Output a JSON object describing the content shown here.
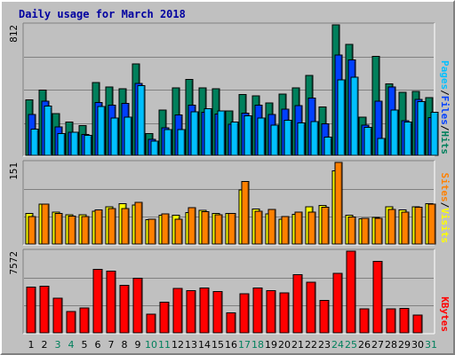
{
  "title": "Daily usage for March 2018",
  "colors": {
    "hits": "#00805c",
    "files": "#0040ff",
    "pages": "#00c0ff",
    "visits": "#ffff00",
    "sites": "#ff8000",
    "kbytes": "#ff0000",
    "weekday_label": "#000000",
    "weekend_label": "#00805c",
    "title": "#0000a0"
  },
  "chart_data": [
    {
      "type": "bar",
      "panel": "requests",
      "categories": [
        "1",
        "2",
        "3",
        "4",
        "5",
        "6",
        "7",
        "8",
        "9",
        "10",
        "11",
        "12",
        "13",
        "14",
        "15",
        "16",
        "17",
        "18",
        "19",
        "20",
        "21",
        "22",
        "23",
        "24",
        "25",
        "26",
        "27",
        "28",
        "29",
        "30",
        "31"
      ],
      "ymax": 812,
      "ymax_label": "812",
      "series": [
        {
          "name": "Hits",
          "values": [
            345,
            406,
            260,
            208,
            186,
            453,
            424,
            414,
            569,
            134,
            282,
            420,
            472,
            420,
            414,
            276,
            378,
            370,
            325,
            381,
            419,
            497,
            300,
            812,
            691,
            238,
            616,
            446,
            391,
            398,
            360
          ]
        },
        {
          "name": "Files",
          "values": [
            253,
            336,
            176,
            144,
            129,
            328,
            312,
            322,
            447,
            99,
            170,
            250,
            311,
            267,
            257,
            194,
            262,
            312,
            255,
            287,
            308,
            356,
            196,
            625,
            594,
            187,
            337,
            426,
            216,
            347,
            234
          ]
        },
        {
          "name": "Pages",
          "values": [
            163,
            307,
            136,
            145,
            123,
            304,
            232,
            238,
            433,
            89,
            159,
            160,
            270,
            290,
            275,
            207,
            247,
            232,
            187,
            218,
            201,
            211,
            112,
            470,
            485,
            175,
            105,
            281,
            206,
            334,
            267
          ]
        }
      ],
      "right_labels": [
        {
          "text": "Pages",
          "color": "#00c0ff"
        },
        {
          "text": "/",
          "color": "#000000"
        },
        {
          "text": "Files",
          "color": "#0040ff"
        },
        {
          "text": "/",
          "color": "#000000"
        },
        {
          "text": "Hits",
          "color": "#00805c"
        }
      ]
    },
    {
      "type": "bar",
      "panel": "visitors",
      "categories": [
        "1",
        "2",
        "3",
        "4",
        "5",
        "6",
        "7",
        "8",
        "9",
        "10",
        "11",
        "12",
        "13",
        "14",
        "15",
        "16",
        "17",
        "18",
        "19",
        "20",
        "21",
        "22",
        "23",
        "24",
        "25",
        "26",
        "27",
        "28",
        "29",
        "30",
        "31"
      ],
      "ymax": 151,
      "ymax_label": "151",
      "series": [
        {
          "name": "Visits",
          "values": [
            57,
            74,
            59,
            54,
            54,
            61,
            69,
            75,
            72,
            45,
            53,
            53,
            58,
            62,
            57,
            57,
            100,
            65,
            56,
            46,
            55,
            69,
            71,
            135,
            53,
            47,
            49,
            69,
            63,
            69,
            75
          ]
        },
        {
          "name": "Sites",
          "values": [
            51,
            74,
            57,
            52,
            51,
            63,
            66,
            66,
            77,
            46,
            56,
            46,
            67,
            60,
            54,
            57,
            116,
            61,
            64,
            51,
            59,
            59,
            68,
            151,
            50,
            48,
            48,
            64,
            59,
            68,
            74
          ]
        }
      ],
      "right_labels": [
        {
          "text": "Sites",
          "color": "#ff8000"
        },
        {
          "text": "/",
          "color": "#000000"
        },
        {
          "text": "Visits",
          "color": "#ffff00"
        }
      ]
    },
    {
      "type": "bar",
      "panel": "kbytes",
      "categories": [
        "1",
        "2",
        "3",
        "4",
        "5",
        "6",
        "7",
        "8",
        "9",
        "10",
        "11",
        "12",
        "13",
        "14",
        "15",
        "16",
        "17",
        "18",
        "19",
        "20",
        "21",
        "22",
        "23",
        "24",
        "25",
        "26",
        "27",
        "28",
        "29",
        "30",
        "31"
      ],
      "ymax": 7572,
      "ymax_label": "7572",
      "series": [
        {
          "name": "KBytes",
          "values": [
            4230,
            4320,
            3210,
            1990,
            2290,
            5880,
            5700,
            4400,
            5080,
            1710,
            2860,
            4110,
            3930,
            4170,
            3820,
            1850,
            3640,
            4160,
            3930,
            3720,
            5380,
            4710,
            3000,
            5500,
            7572,
            2220,
            6640,
            2220,
            2280,
            1640,
            0
          ]
        }
      ],
      "right_labels": [
        {
          "text": "KBytes",
          "color": "#ff0000"
        }
      ]
    }
  ]
}
